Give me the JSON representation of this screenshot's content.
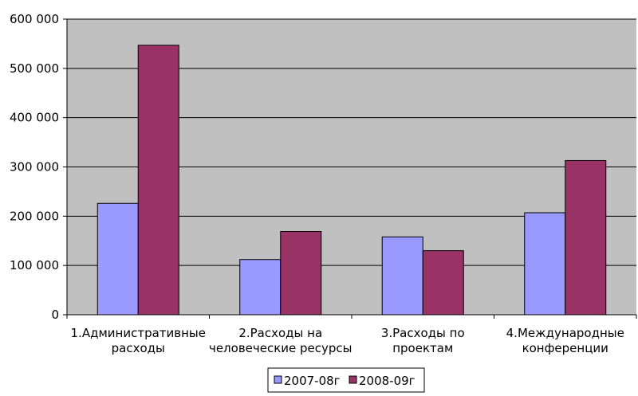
{
  "chart_data": {
    "type": "bar",
    "categories": [
      [
        "1.Административные",
        "расходы"
      ],
      [
        "2.Расходы на",
        "человеческие ресурсы"
      ],
      [
        "3.Расходы по",
        "проектам"
      ],
      [
        "4.Международные",
        "конференции"
      ]
    ],
    "series": [
      {
        "name": "2007-08г",
        "values": [
          226000,
          112000,
          158000,
          207000
        ],
        "color": "#9999ff"
      },
      {
        "name": "2008-09г",
        "values": [
          547000,
          169000,
          130000,
          313000
        ],
        "color": "#993366"
      }
    ],
    "ylim": [
      0,
      600000
    ],
    "yticks": [
      0,
      100000,
      200000,
      300000,
      400000,
      500000,
      600000
    ],
    "ytick_labels": [
      "0",
      "100 000",
      "200 000",
      "300 000",
      "400 000",
      "500 000",
      "600 000"
    ],
    "plot_background": "#c0c0c0",
    "grid": true,
    "legend_position": "bottom"
  }
}
